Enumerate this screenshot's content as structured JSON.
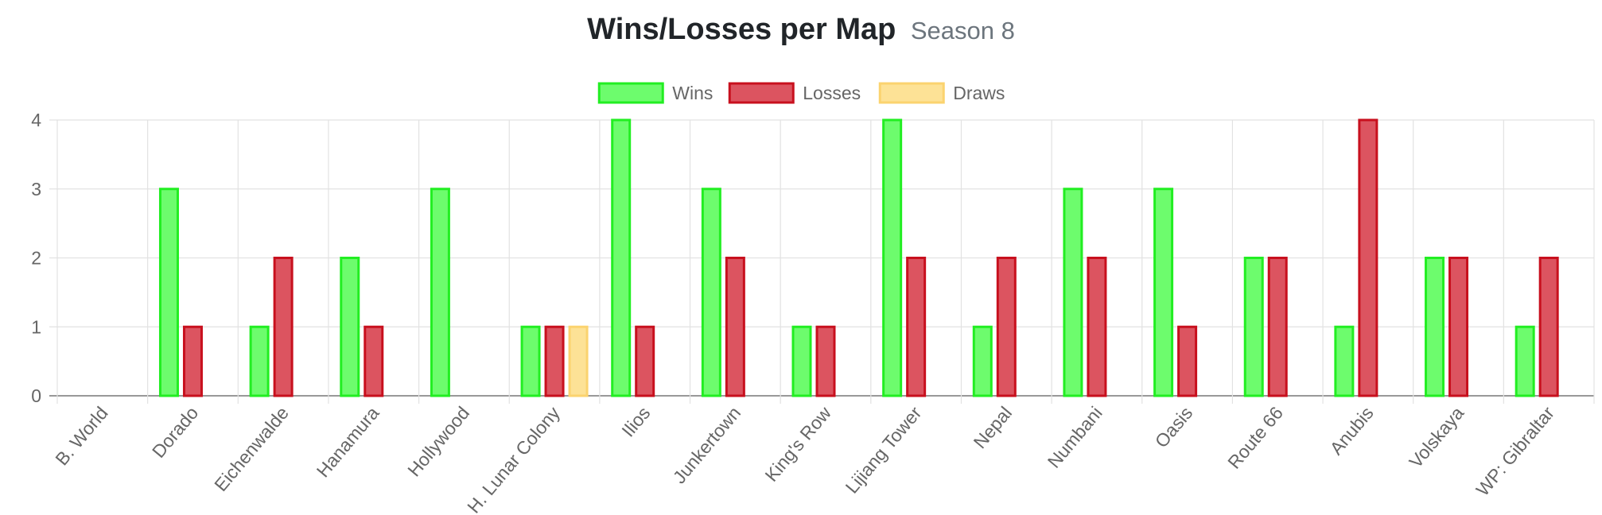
{
  "header": {
    "title": "Wins/Losses per Map",
    "subtitle": "Season 8"
  },
  "colors": {
    "wins_fill": "#6dfc6d",
    "wins_stroke": "#22ee22",
    "losses_fill": "#dc5460",
    "losses_stroke": "#c8101e",
    "draws_fill": "#fde296",
    "draws_stroke": "#fbd36f",
    "grid": "#e2e2e2",
    "axis": "#999999",
    "tick_text": "#666666"
  },
  "chart_data": {
    "type": "bar",
    "categories": [
      "B. World",
      "Dorado",
      "Eichenwalde",
      "Hanamura",
      "Hollywood",
      "H. Lunar Colony",
      "Ilios",
      "Junkertown",
      "King's Row",
      "Lijiang Tower",
      "Nepal",
      "Numbani",
      "Oasis",
      "Route 66",
      "Anubis",
      "Volskaya",
      "WP: Gibraltar"
    ],
    "series": [
      {
        "name": "Wins",
        "values": [
          0,
          3,
          1,
          2,
          3,
          1,
          4,
          3,
          1,
          4,
          1,
          3,
          3,
          2,
          1,
          2,
          1
        ]
      },
      {
        "name": "Losses",
        "values": [
          0,
          1,
          2,
          1,
          0,
          1,
          1,
          2,
          1,
          2,
          2,
          2,
          1,
          2,
          4,
          2,
          2
        ]
      },
      {
        "name": "Draws",
        "values": [
          0,
          0,
          0,
          0,
          0,
          1,
          0,
          0,
          0,
          0,
          0,
          0,
          0,
          0,
          0,
          0,
          0
        ]
      }
    ],
    "yticks": [
      "0",
      "1",
      "2",
      "3",
      "4"
    ],
    "ylim": [
      0,
      4
    ],
    "grid": true,
    "legend_position": "top"
  }
}
